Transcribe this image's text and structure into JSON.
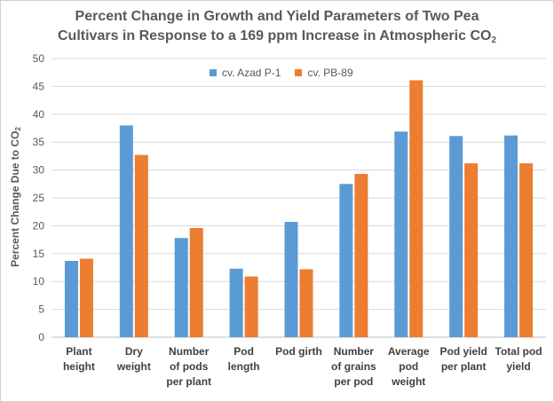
{
  "chart_data": {
    "type": "bar",
    "title_line1": "Percent Change in Growth and Yield Parameters of Two Pea",
    "title_line2": "Cultivars in Response to a 169 ppm Increase in Atmospheric CO",
    "title_sub": "2",
    "ylabel": "Percent Change Due to CO",
    "ylabel_sub": "2",
    "ylim": [
      0,
      50
    ],
    "yticks": [
      0,
      5,
      10,
      15,
      20,
      25,
      30,
      35,
      40,
      45,
      50
    ],
    "grid": true,
    "legend_position": "top-center",
    "categories": [
      [
        "Plant",
        "height"
      ],
      [
        "Dry",
        "weight"
      ],
      [
        "Number",
        "of pods",
        "per plant"
      ],
      [
        "Pod",
        "length"
      ],
      [
        "Pod girth"
      ],
      [
        "Number",
        "of grains",
        "per pod"
      ],
      [
        "Average",
        "pod",
        "weight"
      ],
      [
        "Pod yield",
        "per plant"
      ],
      [
        "Total pod",
        "yield"
      ]
    ],
    "series": [
      {
        "name": "cv. Azad P-1",
        "color": "#5b9bd5",
        "values": [
          13.7,
          38.0,
          17.8,
          12.3,
          20.7,
          27.5,
          36.9,
          36.1,
          36.2
        ]
      },
      {
        "name": "cv. PB-89",
        "color": "#ed7d31",
        "values": [
          14.1,
          32.7,
          19.6,
          10.9,
          12.2,
          29.3,
          46.1,
          31.2,
          31.2
        ]
      }
    ]
  }
}
